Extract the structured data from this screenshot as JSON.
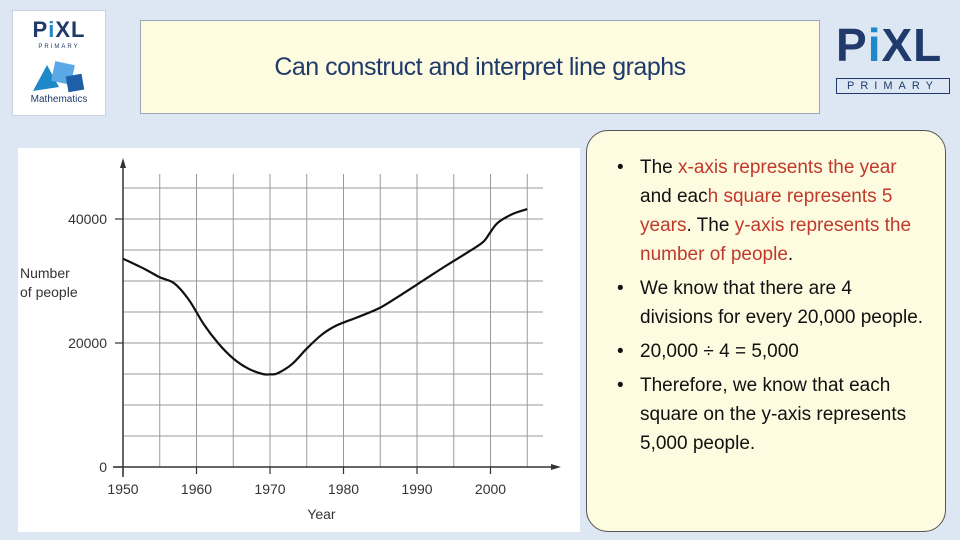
{
  "header": {
    "title": "Can construct and interpret line graphs"
  },
  "logo_left": {
    "name": "PiXL",
    "sub": "PRIMARY",
    "subject": "Mathematics"
  },
  "logo_right": {
    "name": "PiXL",
    "sub": "PRIMARY"
  },
  "chart_data": {
    "type": "line",
    "title": "",
    "xlabel": "Year",
    "ylabel": "Number of people",
    "xlim": [
      1950,
      2005
    ],
    "ylim": [
      0,
      40000
    ],
    "x_ticks": [
      1950,
      1960,
      1970,
      1980,
      1990,
      2000
    ],
    "y_ticks": [
      0,
      20000,
      40000
    ],
    "grid": true,
    "line_color": "#111111",
    "x": [
      1950,
      1953,
      1955,
      1957,
      1959,
      1961,
      1963,
      1965,
      1967,
      1969,
      1970,
      1971,
      1973,
      1975,
      1977,
      1979,
      1982,
      1985,
      1988,
      1991,
      1994,
      1997,
      1999,
      2000,
      2001,
      2003,
      2005
    ],
    "y": [
      33600,
      31900,
      30600,
      29600,
      26900,
      23000,
      19900,
      17500,
      15900,
      15000,
      14950,
      15100,
      16600,
      19100,
      21300,
      22800,
      24200,
      25700,
      27900,
      30200,
      32500,
      34700,
      36300,
      37900,
      39400,
      40800,
      41600
    ]
  },
  "explanation": {
    "bullets": [
      [
        {
          "text": "The ",
          "hl": false
        },
        {
          "text": "x-axis represents the year",
          "hl": true
        },
        {
          "text": " and eac",
          "hl": false
        },
        {
          "text": "h square represents 5 years",
          "hl": true
        },
        {
          "text": ". The ",
          "hl": false
        },
        {
          "text": "y-axis represents the number of people",
          "hl": true
        },
        {
          "text": ".",
          "hl": false
        }
      ],
      [
        {
          "text": "We know that there are 4 divisions for every 20,000 people.",
          "hl": false
        }
      ],
      [
        {
          "text": "20,000 ÷ 4 = 5,000",
          "hl": false
        }
      ],
      [
        {
          "text": "Therefore, we know that each square on the y-axis represents 5,000 people.",
          "hl": false
        }
      ]
    ],
    "highlight_color": "#c0392b"
  }
}
